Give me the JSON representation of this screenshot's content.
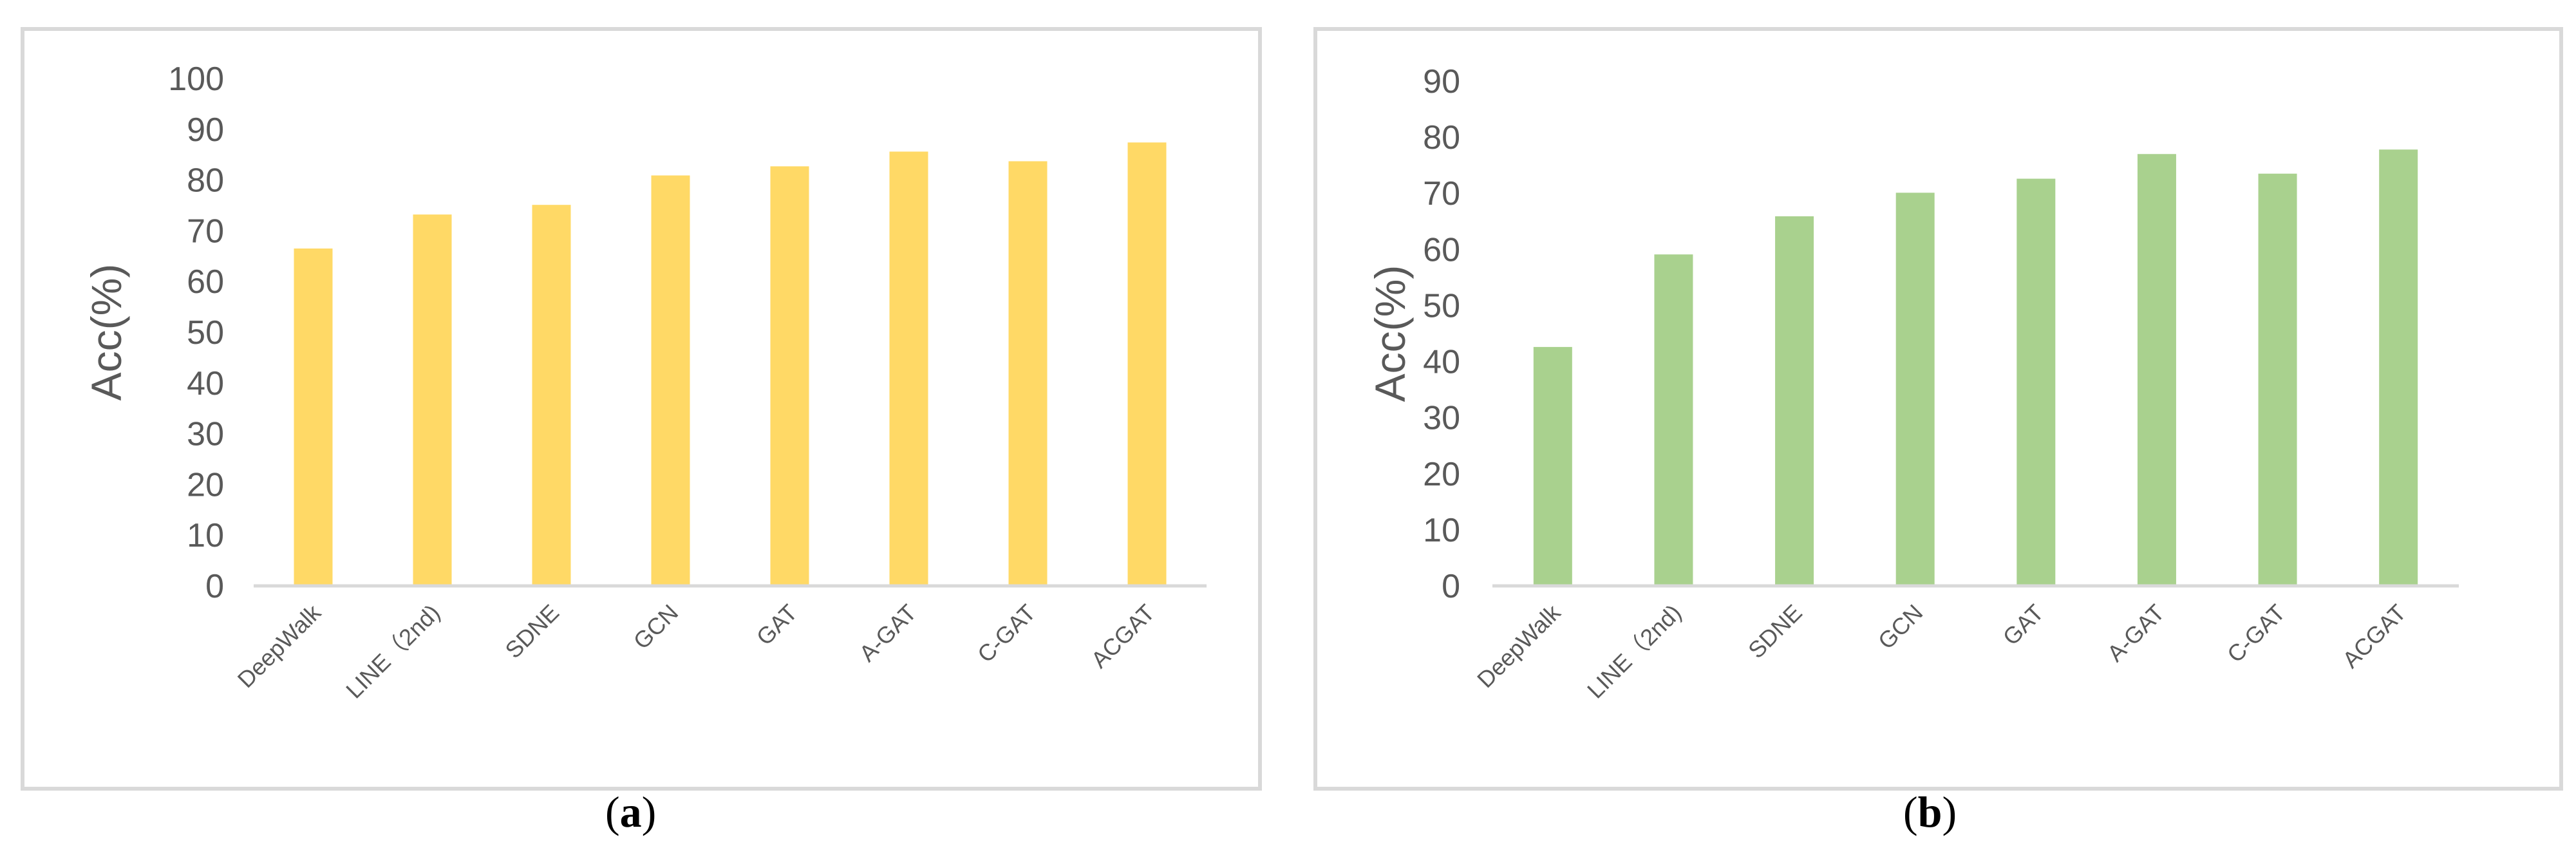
{
  "chart_data": [
    {
      "type": "bar",
      "panel": "a",
      "categories": [
        "DeepWalk",
        "LINE（2nd)",
        "SDNE",
        "GCN",
        "GAT",
        "A-GAT",
        "C-GAT",
        "ACGAT"
      ],
      "values": [
        66.5,
        73.2,
        75.1,
        80.9,
        82.7,
        85.6,
        83.7,
        87.4
      ],
      "ylabel": "Acc(%)",
      "ylim": [
        0,
        100
      ],
      "yticks": [
        0,
        10,
        20,
        30,
        40,
        50,
        60,
        70,
        80,
        90,
        100
      ],
      "color": "#ffd966",
      "grid": false,
      "caption_letter": "a"
    },
    {
      "type": "bar",
      "panel": "b",
      "categories": [
        "DeepWalk",
        "LINE（2nd)",
        "SDNE",
        "GCN",
        "GAT",
        "A-GAT",
        "C-GAT",
        "ACGAT"
      ],
      "values": [
        42.6,
        59.1,
        65.9,
        70.1,
        72.6,
        77.0,
        73.5,
        77.8
      ],
      "ylabel": "Acc(%)",
      "ylim": [
        0,
        90
      ],
      "yticks": [
        0,
        10,
        20,
        30,
        40,
        50,
        60,
        70,
        80,
        90
      ],
      "color": "#a9d18e",
      "grid": false,
      "caption_letter": "b"
    }
  ],
  "axis_color": "#d9d9d9",
  "text_color": "#595959"
}
